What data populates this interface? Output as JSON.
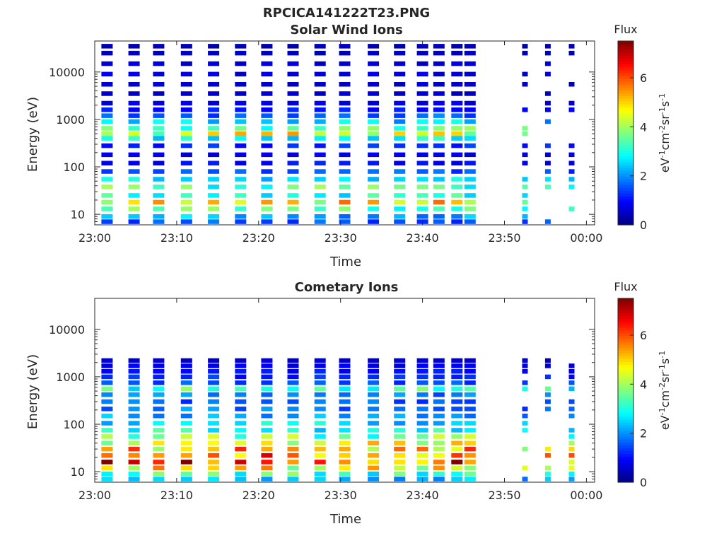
{
  "figure_title": "RPCICA141222T23.PNG",
  "colorbar": {
    "label": "Flux",
    "unit_base": "eV",
    "unit_parts": [
      "-1",
      "cm",
      "-2",
      "sr",
      "-1",
      "s",
      "-1"
    ],
    "ticks": [
      "0",
      "2",
      "4",
      "6"
    ],
    "range": [
      0,
      7.5
    ],
    "colormap": "jet"
  },
  "chart_data": [
    {
      "type": "heatmap",
      "title": "Solar Wind Ions",
      "xlabel": "Time",
      "ylabel": "Energy (eV)",
      "yscale": "log",
      "ylim": [
        6,
        45000
      ],
      "xlim": [
        "23:00",
        "00:01"
      ],
      "xticks": [
        "23:00",
        "23:10",
        "23:20",
        "23:30",
        "23:40",
        "23:50",
        "00:00"
      ],
      "yticks": [
        "10",
        "100",
        "1000",
        "10000"
      ],
      "ytick_values": [
        10,
        100,
        1000,
        10000
      ],
      "grid": false,
      "scan_times_min": [
        1.5,
        4.8,
        7.8,
        11.2,
        14.5,
        17.8,
        21.0,
        24.2,
        27.5,
        30.5,
        34.0,
        37.2,
        40.0,
        42.0,
        44.2,
        45.8
      ],
      "late_times_min": [
        52.5,
        55.3,
        58.2
      ],
      "bands": [
        {
          "energy_eV": 35000,
          "flux": 0.4
        },
        {
          "energy_eV": 25000,
          "flux": 0.5
        },
        {
          "energy_eV": 15000,
          "flux": 0.6
        },
        {
          "energy_eV": 9000,
          "flux": 0.7
        },
        {
          "energy_eV": 5500,
          "flux": 0.6
        },
        {
          "energy_eV": 3500,
          "flux": 0.5
        },
        {
          "energy_eV": 2200,
          "flux": 0.8
        },
        {
          "energy_eV": 1600,
          "flux": 1.0
        },
        {
          "energy_eV": 1200,
          "flux": 1.6
        },
        {
          "energy_eV": 900,
          "flux": 2.4
        },
        {
          "energy_eV": 650,
          "flux": 3.4
        },
        {
          "energy_eV": 500,
          "flux": 4.4
        },
        {
          "energy_eV": 400,
          "flux": 2.6
        },
        {
          "energy_eV": 280,
          "flux": 1.2
        },
        {
          "energy_eV": 180,
          "flux": 0.8
        },
        {
          "energy_eV": 120,
          "flux": 1.0
        },
        {
          "energy_eV": 80,
          "flux": 1.6
        },
        {
          "energy_eV": 55,
          "flux": 2.6
        },
        {
          "energy_eV": 38,
          "flux": 3.4
        },
        {
          "energy_eV": 25,
          "flux": 3.0
        },
        {
          "energy_eV": 18,
          "flux": 4.8
        },
        {
          "energy_eV": 13,
          "flux": 3.4
        },
        {
          "energy_eV": 9,
          "flux": 2.2
        },
        {
          "energy_eV": 7,
          "flux": 1.5
        }
      ]
    },
    {
      "type": "heatmap",
      "title": "Cometary Ions",
      "xlabel": "Time",
      "ylabel": "Energy (eV)",
      "yscale": "log",
      "ylim": [
        6,
        45000
      ],
      "xlim": [
        "23:00",
        "00:01"
      ],
      "xticks": [
        "23:00",
        "23:10",
        "23:20",
        "23:30",
        "23:40",
        "23:50",
        "00:00"
      ],
      "yticks": [
        "10",
        "100",
        "1000",
        "10000"
      ],
      "ytick_values": [
        10,
        100,
        1000,
        10000
      ],
      "grid": false,
      "scan_times_min": [
        1.5,
        4.8,
        7.8,
        11.2,
        14.5,
        17.8,
        21.0,
        24.2,
        27.5,
        30.5,
        34.0,
        37.2,
        40.0,
        42.0,
        44.2,
        45.8
      ],
      "late_times_min": [
        52.5,
        55.3,
        58.2
      ],
      "bands": [
        {
          "energy_eV": 2200,
          "flux": 0.6
        },
        {
          "energy_eV": 1700,
          "flux": 0.8
        },
        {
          "energy_eV": 1300,
          "flux": 1.0
        },
        {
          "energy_eV": 1000,
          "flux": 1.2
        },
        {
          "energy_eV": 750,
          "flux": 1.4
        },
        {
          "energy_eV": 560,
          "flux": 3.2
        },
        {
          "energy_eV": 420,
          "flux": 1.8
        },
        {
          "energy_eV": 300,
          "flux": 1.6
        },
        {
          "energy_eV": 210,
          "flux": 1.8
        },
        {
          "energy_eV": 150,
          "flux": 2.2
        },
        {
          "energy_eV": 105,
          "flux": 2.6
        },
        {
          "energy_eV": 75,
          "flux": 3.0
        },
        {
          "energy_eV": 55,
          "flux": 3.6
        },
        {
          "energy_eV": 40,
          "flux": 4.4
        },
        {
          "energy_eV": 30,
          "flux": 5.2
        },
        {
          "energy_eV": 22,
          "flux": 6.0
        },
        {
          "energy_eV": 16,
          "flux": 6.3
        },
        {
          "energy_eV": 12,
          "flux": 4.6
        },
        {
          "energy_eV": 9,
          "flux": 3.2
        },
        {
          "energy_eV": 7,
          "flux": 2.2
        }
      ]
    }
  ]
}
